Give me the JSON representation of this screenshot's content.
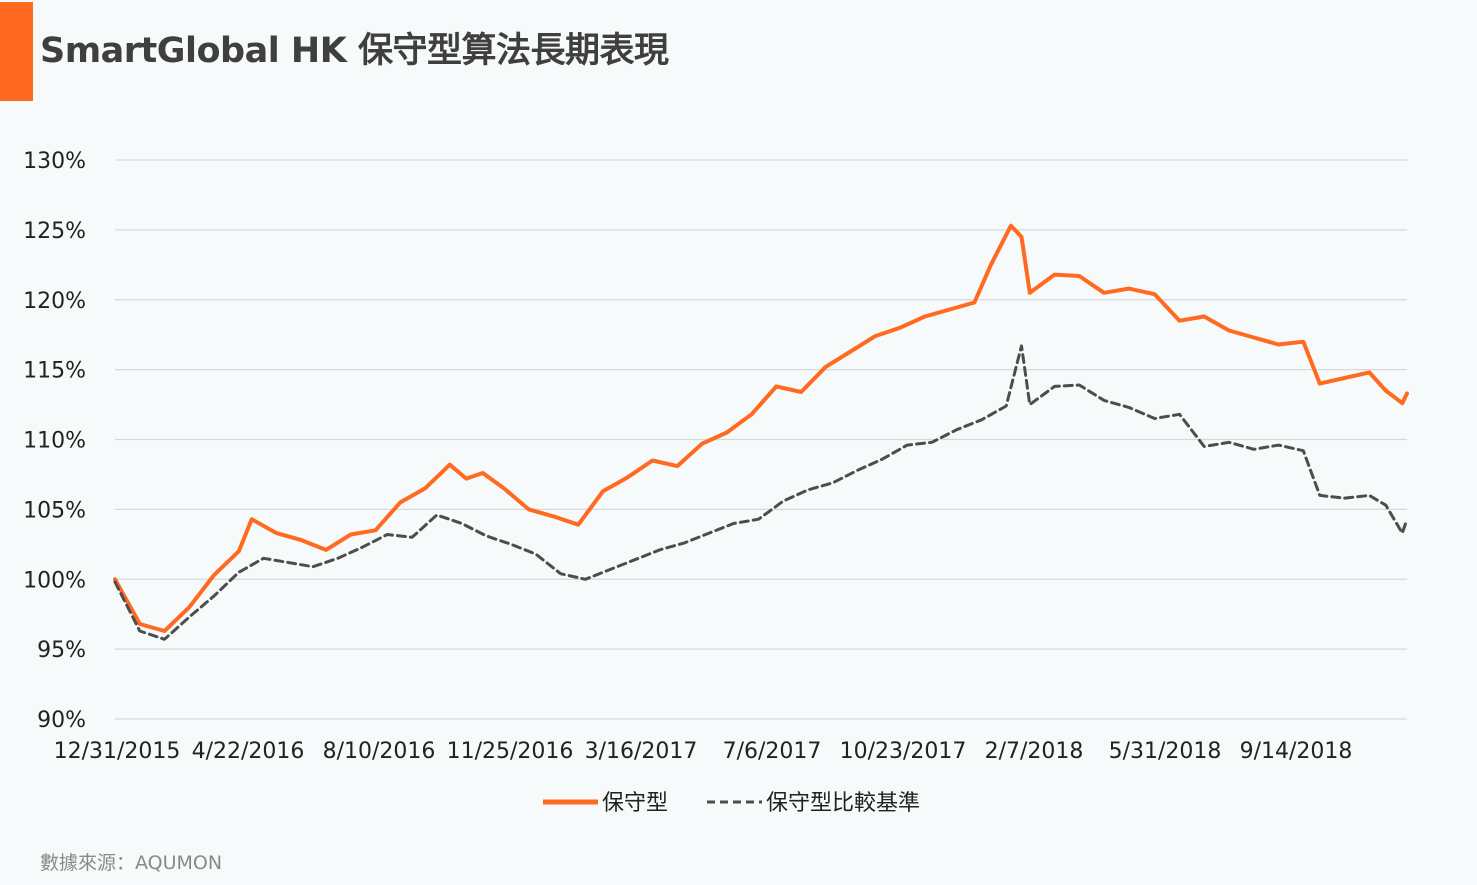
{
  "title": "SmartGlobal HK 保守型算法長期表現",
  "source": "數據來源：AQUMON",
  "colors": {
    "accent": "#ff6a20",
    "benchmark": "#4d4d4d",
    "grid": "#d6d9db"
  },
  "chart_data": {
    "type": "line",
    "title": "SmartGlobal HK 保守型算法長期表現",
    "xlabel": "",
    "ylabel": "",
    "y_ticks": [
      "90%",
      "95%",
      "100%",
      "105%",
      "110%",
      "115%",
      "120%",
      "125%",
      "130%"
    ],
    "ylim": [
      90,
      130
    ],
    "x_ticks": [
      "12/31/2015",
      "4/22/2016",
      "8/10/2016",
      "11/25/2016",
      "3/16/2017",
      "7/6/2017",
      "10/23/2017",
      "2/7/2018",
      "5/31/2018",
      "9/14/2018"
    ],
    "xlim": [
      "2015-12-31",
      "2018-12-31"
    ],
    "grid": true,
    "legend": "bottom",
    "series": [
      {
        "name": "保守型",
        "style": "solid",
        "color": "#ff6a20",
        "points": [
          [
            "2015-12-31",
            100.0
          ],
          [
            "2016-01-21",
            96.8
          ],
          [
            "2016-02-11",
            96.3
          ],
          [
            "2016-03-03",
            98.0
          ],
          [
            "2016-03-24",
            100.3
          ],
          [
            "2016-04-14",
            102.0
          ],
          [
            "2016-04-25",
            104.3
          ],
          [
            "2016-05-16",
            103.3
          ],
          [
            "2016-06-06",
            102.8
          ],
          [
            "2016-06-27",
            102.1
          ],
          [
            "2016-07-18",
            103.2
          ],
          [
            "2016-08-08",
            103.5
          ],
          [
            "2016-08-29",
            105.5
          ],
          [
            "2016-09-19",
            106.5
          ],
          [
            "2016-10-10",
            108.2
          ],
          [
            "2016-10-24",
            107.2
          ],
          [
            "2016-11-07",
            107.6
          ],
          [
            "2016-11-25",
            106.5
          ],
          [
            "2016-12-16",
            105.0
          ],
          [
            "2017-01-06",
            104.5
          ],
          [
            "2017-01-27",
            103.9
          ],
          [
            "2017-02-17",
            106.3
          ],
          [
            "2017-03-10",
            107.3
          ],
          [
            "2017-03-31",
            108.5
          ],
          [
            "2017-04-21",
            108.1
          ],
          [
            "2017-05-12",
            109.7
          ],
          [
            "2017-06-02",
            110.5
          ],
          [
            "2017-06-23",
            111.8
          ],
          [
            "2017-07-14",
            113.8
          ],
          [
            "2017-08-04",
            113.4
          ],
          [
            "2017-08-25",
            115.2
          ],
          [
            "2017-09-15",
            116.3
          ],
          [
            "2017-10-06",
            117.4
          ],
          [
            "2017-10-27",
            118.0
          ],
          [
            "2017-11-17",
            118.8
          ],
          [
            "2017-12-08",
            119.3
          ],
          [
            "2017-12-29",
            119.8
          ],
          [
            "2018-01-12",
            122.5
          ],
          [
            "2018-01-29",
            125.3
          ],
          [
            "2018-02-07",
            124.5
          ],
          [
            "2018-02-14",
            120.5
          ],
          [
            "2018-03-07",
            121.8
          ],
          [
            "2018-03-28",
            121.7
          ],
          [
            "2018-04-18",
            120.5
          ],
          [
            "2018-05-09",
            120.8
          ],
          [
            "2018-05-31",
            120.4
          ],
          [
            "2018-06-21",
            118.5
          ],
          [
            "2018-07-12",
            118.8
          ],
          [
            "2018-08-02",
            117.8
          ],
          [
            "2018-08-23",
            117.3
          ],
          [
            "2018-09-13",
            116.8
          ],
          [
            "2018-10-04",
            117.0
          ],
          [
            "2018-10-18",
            114.0
          ],
          [
            "2018-11-08",
            114.4
          ],
          [
            "2018-11-29",
            114.8
          ],
          [
            "2018-12-13",
            113.5
          ],
          [
            "2018-12-27",
            112.6
          ],
          [
            "2018-12-31",
            113.3
          ]
        ]
      },
      {
        "name": "保守型比較基準",
        "style": "dashed",
        "color": "#4d4d4d",
        "points": [
          [
            "2015-12-31",
            99.8
          ],
          [
            "2016-01-21",
            96.3
          ],
          [
            "2016-02-11",
            95.7
          ],
          [
            "2016-03-03",
            97.3
          ],
          [
            "2016-03-24",
            98.8
          ],
          [
            "2016-04-14",
            100.5
          ],
          [
            "2016-05-05",
            101.5
          ],
          [
            "2016-05-26",
            101.2
          ],
          [
            "2016-06-16",
            100.9
          ],
          [
            "2016-07-07",
            101.5
          ],
          [
            "2016-07-28",
            102.3
          ],
          [
            "2016-08-18",
            103.2
          ],
          [
            "2016-09-08",
            103.0
          ],
          [
            "2016-09-29",
            104.6
          ],
          [
            "2016-10-20",
            104.0
          ],
          [
            "2016-11-10",
            103.1
          ],
          [
            "2016-12-01",
            102.5
          ],
          [
            "2016-12-22",
            101.8
          ],
          [
            "2017-01-12",
            100.4
          ],
          [
            "2017-02-02",
            100.0
          ],
          [
            "2017-02-23",
            100.7
          ],
          [
            "2017-03-16",
            101.4
          ],
          [
            "2017-04-06",
            102.1
          ],
          [
            "2017-04-27",
            102.6
          ],
          [
            "2017-05-18",
            103.3
          ],
          [
            "2017-06-08",
            104.0
          ],
          [
            "2017-06-29",
            104.3
          ],
          [
            "2017-07-20",
            105.6
          ],
          [
            "2017-08-10",
            106.4
          ],
          [
            "2017-08-31",
            106.9
          ],
          [
            "2017-09-21",
            107.8
          ],
          [
            "2017-10-12",
            108.6
          ],
          [
            "2017-11-02",
            109.6
          ],
          [
            "2017-11-23",
            109.8
          ],
          [
            "2017-12-14",
            110.7
          ],
          [
            "2018-01-04",
            111.4
          ],
          [
            "2018-01-25",
            112.4
          ],
          [
            "2018-02-07",
            116.7
          ],
          [
            "2018-02-14",
            112.5
          ],
          [
            "2018-03-07",
            113.8
          ],
          [
            "2018-03-28",
            113.9
          ],
          [
            "2018-04-18",
            112.8
          ],
          [
            "2018-05-09",
            112.3
          ],
          [
            "2018-05-31",
            111.5
          ],
          [
            "2018-06-21",
            111.8
          ],
          [
            "2018-07-12",
            109.5
          ],
          [
            "2018-08-02",
            109.8
          ],
          [
            "2018-08-23",
            109.3
          ],
          [
            "2018-09-13",
            109.6
          ],
          [
            "2018-10-04",
            109.2
          ],
          [
            "2018-10-18",
            106.0
          ],
          [
            "2018-11-08",
            105.8
          ],
          [
            "2018-11-29",
            106.0
          ],
          [
            "2018-12-13",
            105.3
          ],
          [
            "2018-12-27",
            103.3
          ],
          [
            "2018-12-31",
            104.3
          ]
        ]
      }
    ]
  }
}
